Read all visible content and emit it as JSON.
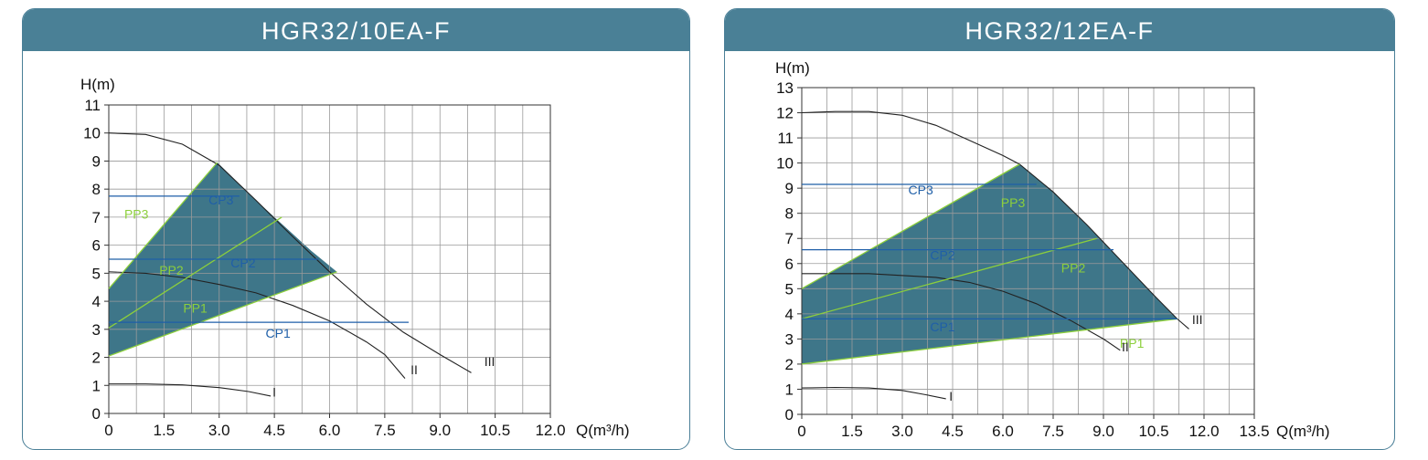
{
  "chart_data": [
    {
      "type": "line",
      "title": "HGR32/10EA-F",
      "ylabel": "H(m)",
      "xlabel": "Q(m³/h)",
      "xlim": [
        0,
        12
      ],
      "ylim": [
        0,
        11
      ],
      "x_ticks": [
        "0",
        "1.5",
        "3.0",
        "4.5",
        "6.0",
        "7.5",
        "9.0",
        "10.5",
        "12.0"
      ],
      "x_tick_values": [
        0,
        1.5,
        3,
        4.5,
        6,
        7.5,
        9,
        10.5,
        12
      ],
      "y_ticks": [
        "0",
        "1",
        "2",
        "3",
        "4",
        "5",
        "6",
        "7",
        "8",
        "9",
        "10",
        "11"
      ],
      "y_tick_values": [
        0,
        1,
        2,
        3,
        4,
        5,
        6,
        7,
        8,
        9,
        10,
        11
      ],
      "grid": true,
      "area": {
        "points": [
          [
            0,
            2.05
          ],
          [
            0,
            4.45
          ],
          [
            2.95,
            8.95
          ],
          [
            4.0,
            7.6
          ],
          [
            5.5,
            5.8
          ],
          [
            6.2,
            5.05
          ]
        ],
        "fill": "#3e7689"
      },
      "series": [
        {
          "name": "III",
          "color": "#222222",
          "points": [
            [
              0,
              10
            ],
            [
              1,
              9.95
            ],
            [
              2,
              9.6
            ],
            [
              3,
              8.85
            ],
            [
              4,
              7.6
            ],
            [
              5,
              6.3
            ],
            [
              6,
              5.05
            ],
            [
              7,
              3.9
            ],
            [
              8,
              2.9
            ],
            [
              9,
              2.1
            ],
            [
              9.85,
              1.45
            ]
          ]
        },
        {
          "name": "II",
          "color": "#222222",
          "points": [
            [
              0,
              5.05
            ],
            [
              1,
              5.0
            ],
            [
              2,
              4.85
            ],
            [
              3,
              4.6
            ],
            [
              4,
              4.3
            ],
            [
              5,
              3.85
            ],
            [
              6,
              3.3
            ],
            [
              7,
              2.55
            ],
            [
              7.5,
              2.1
            ],
            [
              8.05,
              1.25
            ]
          ]
        },
        {
          "name": "I",
          "color": "#222222",
          "points": [
            [
              0,
              1.05
            ],
            [
              1,
              1.05
            ],
            [
              2,
              1.02
            ],
            [
              3,
              0.92
            ],
            [
              3.8,
              0.78
            ],
            [
              4.4,
              0.62
            ]
          ]
        },
        {
          "name": "PP3",
          "color": "#8ccf3c",
          "points": [
            [
              0,
              4.45
            ],
            [
              2.95,
              8.95
            ]
          ]
        },
        {
          "name": "PP2",
          "color": "#8ccf3c",
          "points": [
            [
              0,
              3.05
            ],
            [
              4.7,
              7.0
            ]
          ]
        },
        {
          "name": "PP1",
          "color": "#8ccf3c",
          "points": [
            [
              0,
              2.05
            ],
            [
              6.2,
              5.05
            ]
          ]
        },
        {
          "name": "CP3",
          "color": "#1f5fa8",
          "points": [
            [
              0,
              7.75
            ],
            [
              3.55,
              7.75
            ]
          ]
        },
        {
          "name": "CP2",
          "color": "#1f5fa8",
          "points": [
            [
              0,
              5.5
            ],
            [
              5.7,
              5.5
            ]
          ]
        },
        {
          "name": "CP1",
          "color": "#1f5fa8",
          "points": [
            [
              0,
              3.25
            ],
            [
              8.15,
              3.25
            ]
          ]
        }
      ],
      "labels": [
        {
          "text": "PP3",
          "x": 0.75,
          "y": 6.95,
          "color": "#8ccf3c"
        },
        {
          "text": "PP2",
          "x": 1.7,
          "y": 4.95,
          "color": "#8ccf3c"
        },
        {
          "text": "PP1",
          "x": 2.35,
          "y": 3.6,
          "color": "#8ccf3c"
        },
        {
          "text": "CP3",
          "x": 3.05,
          "y": 7.45,
          "color": "#1f5fa8"
        },
        {
          "text": "CP2",
          "x": 3.65,
          "y": 5.2,
          "color": "#1f5fa8"
        },
        {
          "text": "CP1",
          "x": 4.6,
          "y": 2.7,
          "color": "#1f5fa8"
        },
        {
          "text": "III",
          "x": 10.35,
          "y": 1.7,
          "color": "#222222"
        },
        {
          "text": "II",
          "x": 8.3,
          "y": 1.4,
          "color": "#222222"
        },
        {
          "text": "I",
          "x": 4.5,
          "y": 0.6,
          "color": "#222222"
        }
      ]
    },
    {
      "type": "line",
      "title": "HGR32/12EA-F",
      "ylabel": "H(m)",
      "xlabel": "Q(m³/h)",
      "xlim": [
        0,
        13.5
      ],
      "ylim": [
        0,
        13
      ],
      "x_ticks": [
        "0",
        "1.5",
        "3.0",
        "4.5",
        "6.0",
        "7.5",
        "9.0",
        "10.5",
        "12.0",
        "13.5"
      ],
      "x_tick_values": [
        0,
        1.5,
        3,
        4.5,
        6,
        7.5,
        9,
        10.5,
        12,
        13.5
      ],
      "y_ticks": [
        "0",
        "1",
        "2",
        "3",
        "4",
        "5",
        "6",
        "7",
        "8",
        "9",
        "10",
        "11",
        "12",
        "13"
      ],
      "y_tick_values": [
        0,
        1,
        2,
        3,
        4,
        5,
        6,
        7,
        8,
        9,
        10,
        11,
        12,
        13
      ],
      "grid": true,
      "area": {
        "points": [
          [
            0,
            2.0
          ],
          [
            0,
            5.0
          ],
          [
            6.5,
            9.95
          ],
          [
            7.5,
            8.85
          ],
          [
            8.5,
            7.55
          ],
          [
            9.5,
            6.15
          ],
          [
            10.5,
            4.75
          ],
          [
            11.2,
            3.8
          ]
        ],
        "fill": "#3e7689"
      },
      "series": [
        {
          "name": "III",
          "color": "#222222",
          "points": [
            [
              0,
              12.0
            ],
            [
              1,
              12.05
            ],
            [
              2,
              12.05
            ],
            [
              3,
              11.9
            ],
            [
              4,
              11.5
            ],
            [
              5,
              10.9
            ],
            [
              6,
              10.3
            ],
            [
              6.5,
              9.95
            ],
            [
              7.5,
              8.85
            ],
            [
              8.5,
              7.55
            ],
            [
              9.5,
              6.15
            ],
            [
              10.5,
              4.75
            ],
            [
              11.2,
              3.8
            ],
            [
              11.55,
              3.4
            ]
          ]
        },
        {
          "name": "II",
          "color": "#222222",
          "points": [
            [
              0,
              5.6
            ],
            [
              2,
              5.6
            ],
            [
              4,
              5.45
            ],
            [
              5,
              5.25
            ],
            [
              6,
              4.9
            ],
            [
              7,
              4.4
            ],
            [
              8,
              3.75
            ],
            [
              9,
              3.0
            ],
            [
              9.5,
              2.55
            ]
          ]
        },
        {
          "name": "I",
          "color": "#222222",
          "points": [
            [
              0,
              1.05
            ],
            [
              1,
              1.07
            ],
            [
              2,
              1.05
            ],
            [
              3,
              0.95
            ],
            [
              3.7,
              0.78
            ],
            [
              4.3,
              0.62
            ]
          ]
        },
        {
          "name": "PP3",
          "color": "#8ccf3c",
          "points": [
            [
              0,
              5.0
            ],
            [
              6.5,
              9.95
            ]
          ]
        },
        {
          "name": "PP2",
          "color": "#8ccf3c",
          "points": [
            [
              0,
              3.8
            ],
            [
              8.8,
              7.0
            ]
          ]
        },
        {
          "name": "PP1",
          "color": "#8ccf3c",
          "points": [
            [
              0,
              2.0
            ],
            [
              11.2,
              3.8
            ]
          ]
        },
        {
          "name": "CP3",
          "color": "#1f5fa8",
          "points": [
            [
              0,
              9.15
            ],
            [
              7.0,
              9.15
            ]
          ]
        },
        {
          "name": "CP2",
          "color": "#1f5fa8",
          "points": [
            [
              0,
              6.55
            ],
            [
              9.3,
              6.55
            ]
          ]
        },
        {
          "name": "CP1",
          "color": "#1f5fa8",
          "points": [
            [
              0,
              3.8
            ],
            [
              11.2,
              3.8
            ]
          ]
        }
      ],
      "labels": [
        {
          "text": "CP3",
          "x": 3.55,
          "y": 8.75,
          "color": "#1f5fa8"
        },
        {
          "text": "PP3",
          "x": 6.3,
          "y": 8.25,
          "color": "#8ccf3c"
        },
        {
          "text": "CP2",
          "x": 4.2,
          "y": 6.15,
          "color": "#1f5fa8"
        },
        {
          "text": "PP2",
          "x": 8.1,
          "y": 5.65,
          "color": "#8ccf3c"
        },
        {
          "text": "CP1",
          "x": 4.2,
          "y": 3.3,
          "color": "#1f5fa8"
        },
        {
          "text": "PP1",
          "x": 9.85,
          "y": 2.65,
          "color": "#8ccf3c"
        },
        {
          "text": "III",
          "x": 11.8,
          "y": 3.6,
          "color": "#222222"
        },
        {
          "text": "II",
          "x": 9.65,
          "y": 2.5,
          "color": "#222222"
        },
        {
          "text": "I",
          "x": 4.45,
          "y": 0.55,
          "color": "#222222"
        }
      ]
    }
  ]
}
